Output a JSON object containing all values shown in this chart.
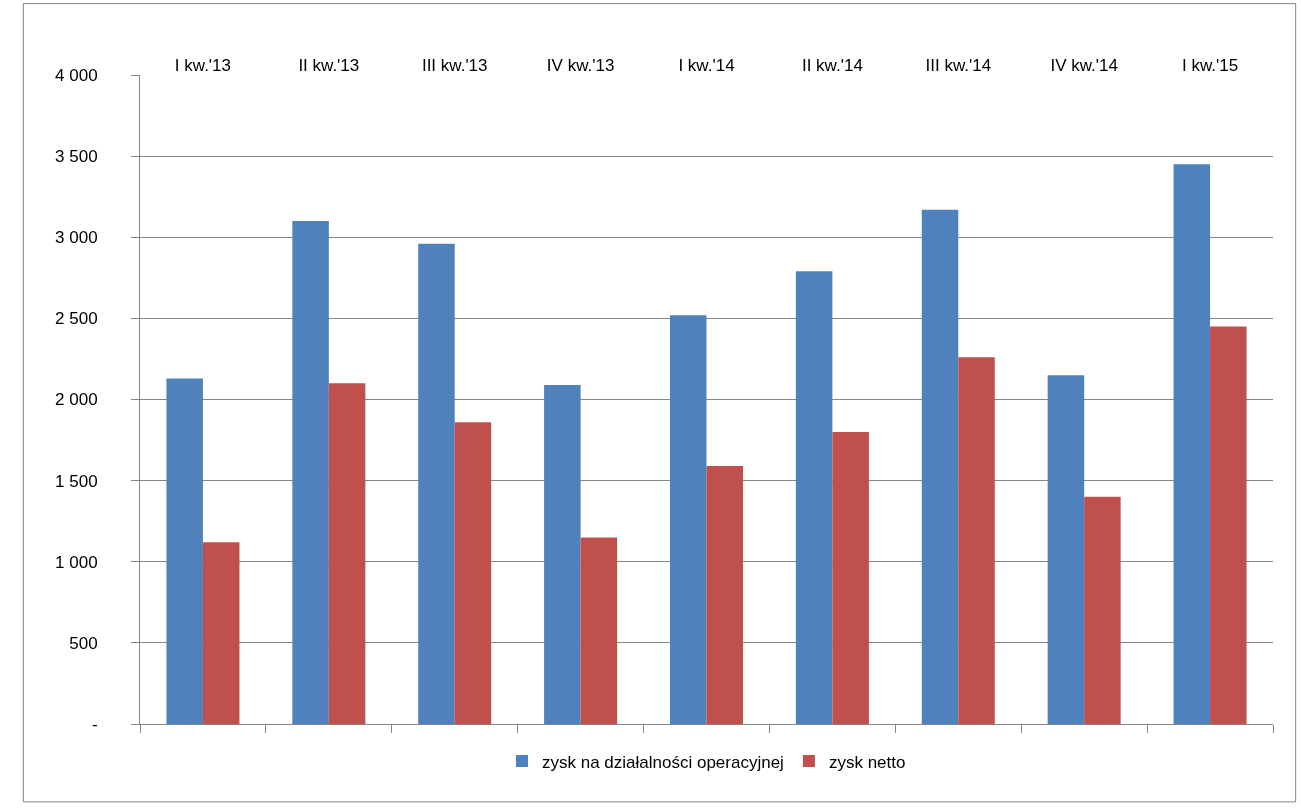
{
  "chart_data": {
    "type": "bar",
    "categories": [
      "I kw.'13",
      "II kw.'13",
      "III kw.'13",
      "IV kw.'13",
      "I kw.'14",
      "II kw.'14",
      "III kw.'14",
      "IV kw.'14",
      "I kw.'15"
    ],
    "series": [
      {
        "name": "zysk na działalności operacyjnej",
        "color": "#4f81bd",
        "values": [
          2130,
          3100,
          2960,
          2090,
          2520,
          2790,
          3170,
          2150,
          3450
        ]
      },
      {
        "name": "zysk netto",
        "color": "#c0504d",
        "values": [
          1120,
          2100,
          1860,
          1150,
          1590,
          1800,
          2260,
          1400,
          2450
        ]
      }
    ],
    "ylim": [
      0,
      4000
    ],
    "yticks": [
      {
        "value": 0,
        "label": "-"
      },
      {
        "value": 500,
        "label": "500"
      },
      {
        "value": 1000,
        "label": "1 000"
      },
      {
        "value": 1500,
        "label": "1 500"
      },
      {
        "value": 2000,
        "label": "2 000"
      },
      {
        "value": 2500,
        "label": "2 500"
      },
      {
        "value": 3000,
        "label": "3 000"
      },
      {
        "value": 3500,
        "label": "3 500"
      },
      {
        "value": 4000,
        "label": "4 000"
      }
    ],
    "grid": "y",
    "legend": "bottom"
  }
}
